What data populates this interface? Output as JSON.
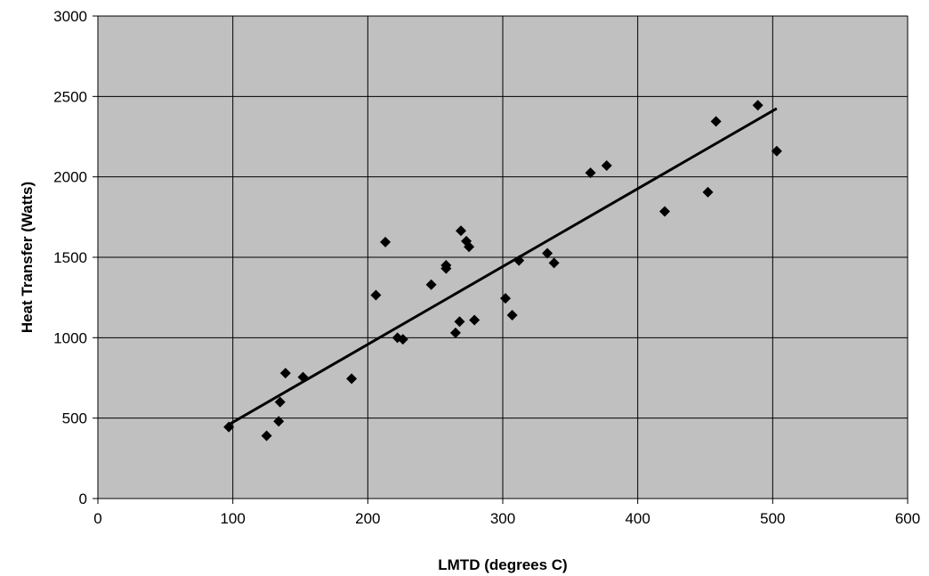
{
  "chart_data": {
    "type": "scatter",
    "title": "",
    "xlabel": "LMTD (degrees C)",
    "ylabel": "Heat Transfer (Watts)",
    "xlim": [
      0,
      600
    ],
    "ylim": [
      0,
      3000
    ],
    "x_ticks": [
      "0",
      "100",
      "200",
      "300",
      "400",
      "500",
      "600"
    ],
    "y_ticks": [
      "0",
      "500",
      "1000",
      "1500",
      "2000",
      "2500",
      "3000"
    ],
    "grid": true,
    "legend": "none",
    "marker": "diamond",
    "plot_background": "#c0c0c0",
    "marker_color": "#000000",
    "series": [
      {
        "points": [
          {
            "x": 97,
            "y": 445
          },
          {
            "x": 125,
            "y": 390
          },
          {
            "x": 134,
            "y": 480
          },
          {
            "x": 135,
            "y": 600
          },
          {
            "x": 139,
            "y": 780
          },
          {
            "x": 152,
            "y": 755
          },
          {
            "x": 188,
            "y": 745
          },
          {
            "x": 206,
            "y": 1265
          },
          {
            "x": 213,
            "y": 1595
          },
          {
            "x": 222,
            "y": 1000
          },
          {
            "x": 226,
            "y": 990
          },
          {
            "x": 247,
            "y": 1330
          },
          {
            "x": 258,
            "y": 1450
          },
          {
            "x": 258,
            "y": 1430
          },
          {
            "x": 265,
            "y": 1030
          },
          {
            "x": 268,
            "y": 1100
          },
          {
            "x": 269,
            "y": 1665
          },
          {
            "x": 273,
            "y": 1600
          },
          {
            "x": 275,
            "y": 1565
          },
          {
            "x": 279,
            "y": 1110
          },
          {
            "x": 302,
            "y": 1245
          },
          {
            "x": 307,
            "y": 1140
          },
          {
            "x": 312,
            "y": 1480
          },
          {
            "x": 333,
            "y": 1525
          },
          {
            "x": 338,
            "y": 1465
          },
          {
            "x": 365,
            "y": 2025
          },
          {
            "x": 377,
            "y": 2070
          },
          {
            "x": 420,
            "y": 1785
          },
          {
            "x": 452,
            "y": 1905
          },
          {
            "x": 458,
            "y": 2345
          },
          {
            "x": 489,
            "y": 2445
          },
          {
            "x": 503,
            "y": 2160
          }
        ]
      }
    ],
    "trendline": {
      "type": "linear",
      "x": [
        97,
        503
      ],
      "y": [
        460,
        2425
      ]
    }
  }
}
